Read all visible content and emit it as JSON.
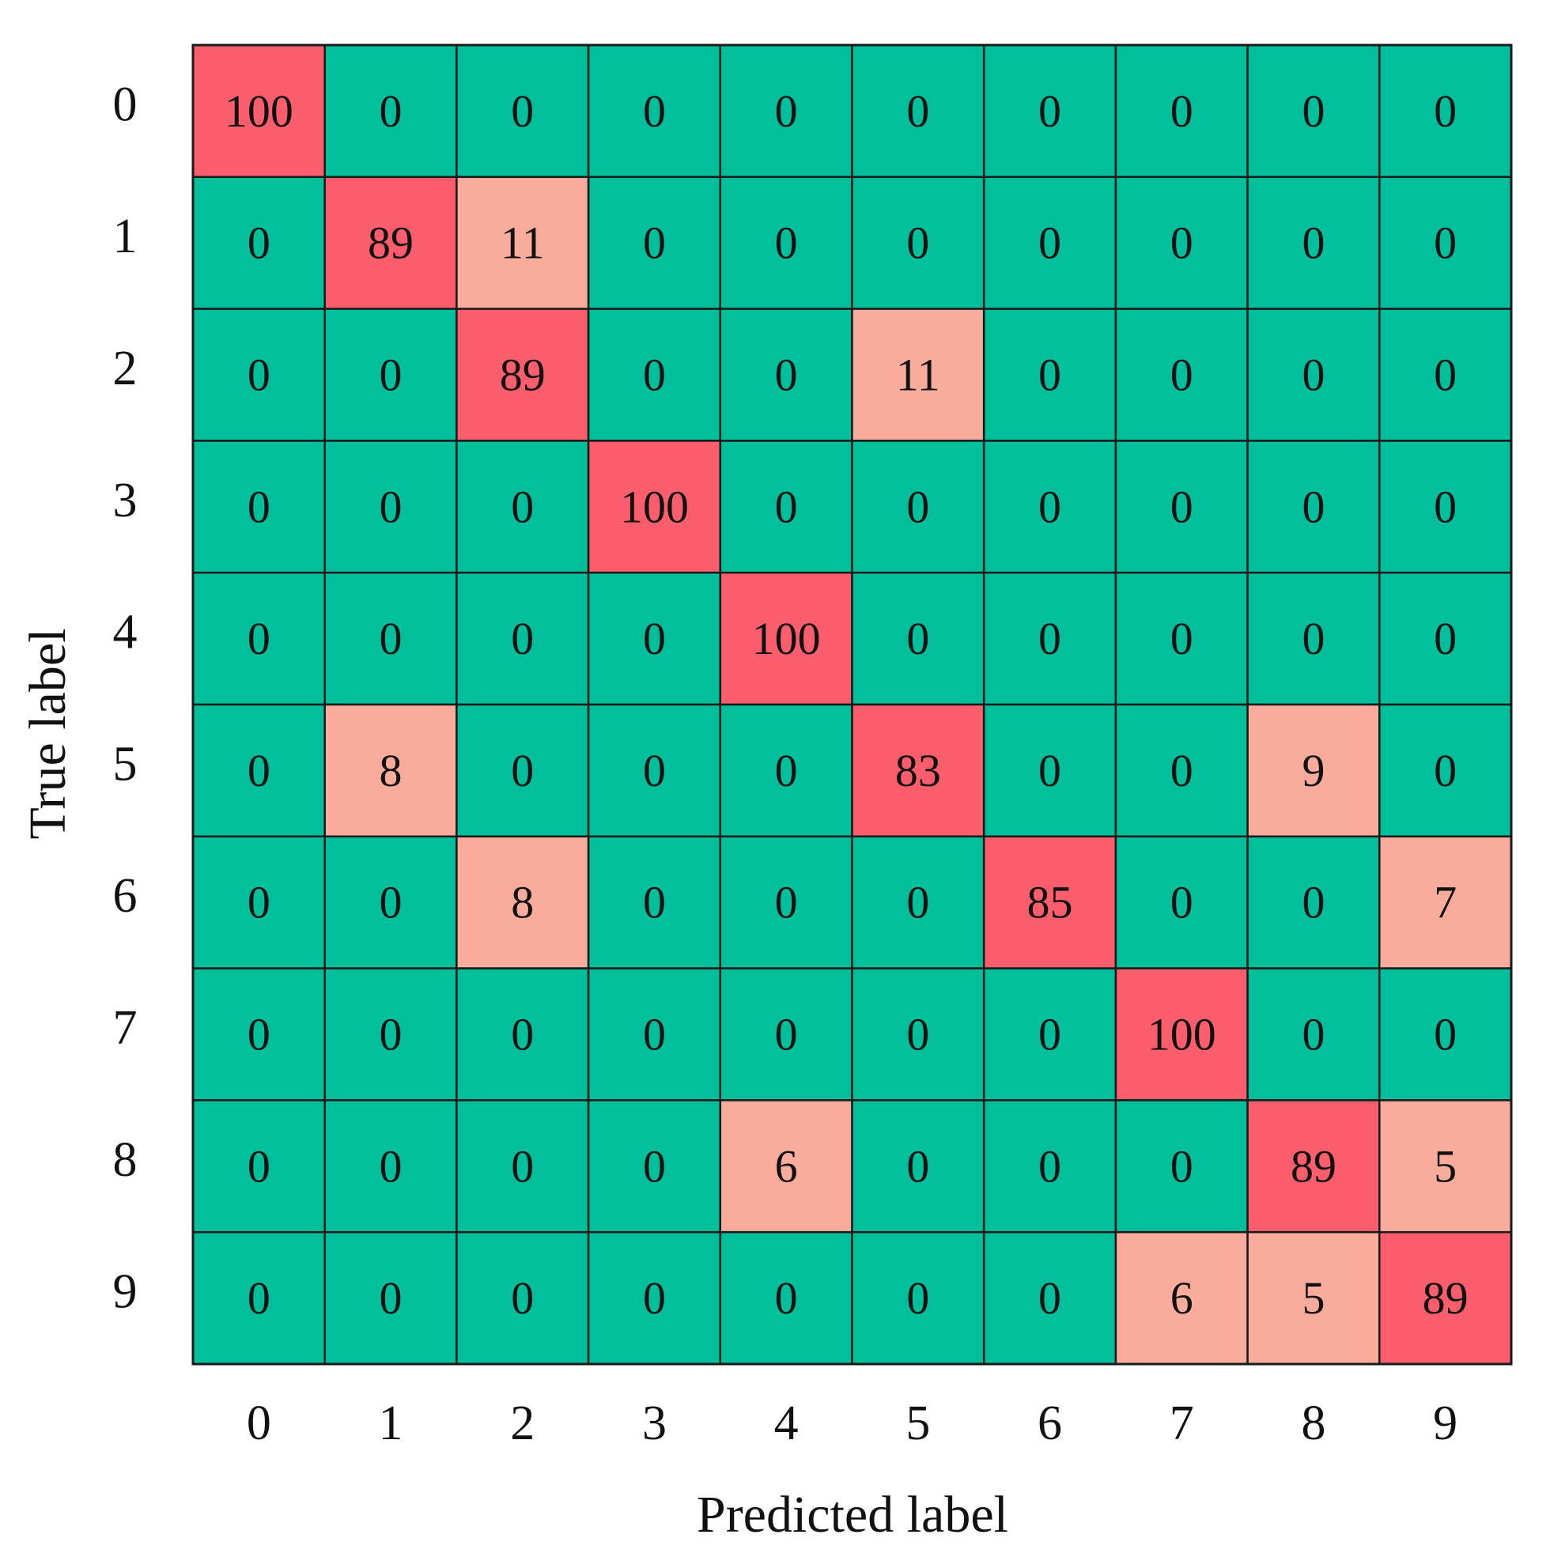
{
  "chart_data": {
    "type": "heatmap",
    "xlabel": "Predicted label",
    "ylabel": "True label",
    "x_categories": [
      "0",
      "1",
      "2",
      "3",
      "4",
      "5",
      "6",
      "7",
      "8",
      "9"
    ],
    "y_categories": [
      "0",
      "1",
      "2",
      "3",
      "4",
      "5",
      "6",
      "7",
      "8",
      "9"
    ],
    "values": [
      [
        100,
        0,
        0,
        0,
        0,
        0,
        0,
        0,
        0,
        0
      ],
      [
        0,
        89,
        11,
        0,
        0,
        0,
        0,
        0,
        0,
        0
      ],
      [
        0,
        0,
        89,
        0,
        0,
        11,
        0,
        0,
        0,
        0
      ],
      [
        0,
        0,
        0,
        100,
        0,
        0,
        0,
        0,
        0,
        0
      ],
      [
        0,
        0,
        0,
        0,
        100,
        0,
        0,
        0,
        0,
        0
      ],
      [
        0,
        8,
        0,
        0,
        0,
        83,
        0,
        0,
        9,
        0
      ],
      [
        0,
        0,
        8,
        0,
        0,
        0,
        85,
        0,
        0,
        7
      ],
      [
        0,
        0,
        0,
        0,
        0,
        0,
        0,
        100,
        0,
        0
      ],
      [
        0,
        0,
        0,
        0,
        6,
        0,
        0,
        0,
        89,
        5
      ],
      [
        0,
        0,
        0,
        0,
        0,
        0,
        0,
        6,
        5,
        89
      ]
    ],
    "colors": {
      "zero": "#00BF9A",
      "low": "#F9AC9C",
      "high": "#FA5D6B",
      "grid": "#1a1a1a"
    }
  }
}
